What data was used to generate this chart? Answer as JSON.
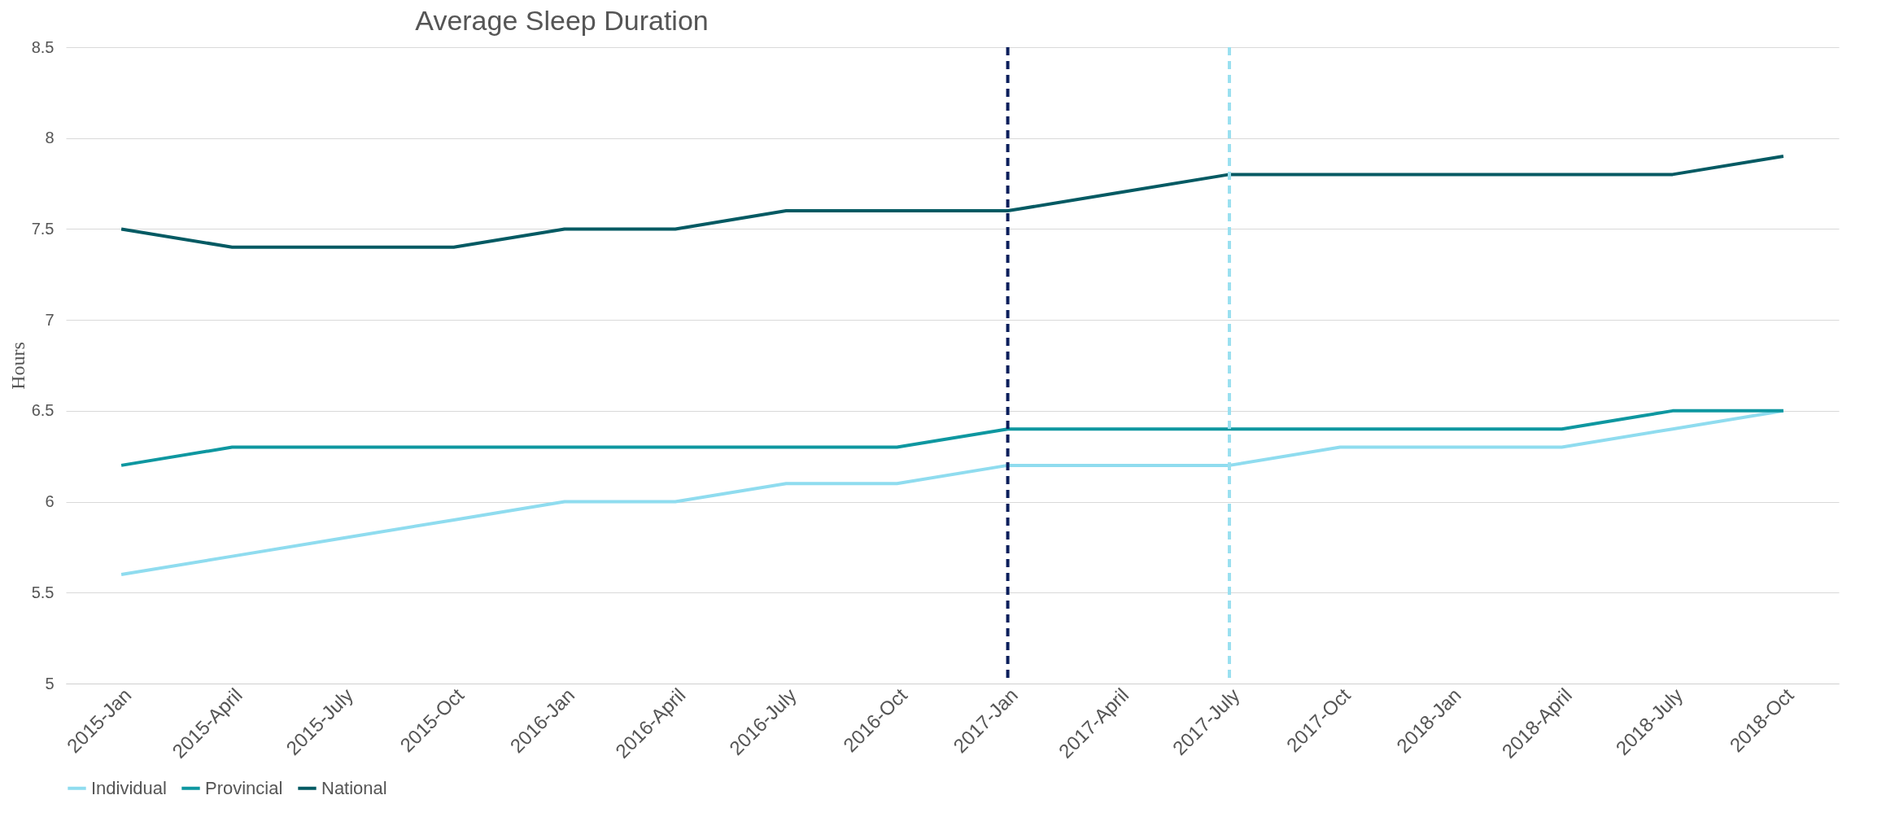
{
  "chart_data": {
    "type": "line",
    "title": "Average Sleep Duration",
    "ylabel": "Hours",
    "categories": [
      "2015-Jan",
      "2015-April",
      "2015-July",
      "2015-Oct",
      "2016-Jan",
      "2016-April",
      "2016-July",
      "2016-Oct",
      "2017-Jan",
      "2017-April",
      "2017-July",
      "2017-Oct",
      "2018-Jan",
      "2018-April",
      "2018-July",
      "2018-Oct"
    ],
    "series": [
      {
        "name": "Individual",
        "color": "#8fdcef",
        "values": [
          5.6,
          5.7,
          5.8,
          5.9,
          6.0,
          6.0,
          6.1,
          6.1,
          6.2,
          6.2,
          6.2,
          6.3,
          6.3,
          6.3,
          6.4,
          6.5
        ]
      },
      {
        "name": "Provincial",
        "color": "#0e97a0",
        "values": [
          6.2,
          6.3,
          6.3,
          6.3,
          6.3,
          6.3,
          6.3,
          6.3,
          6.4,
          6.4,
          6.4,
          6.4,
          6.4,
          6.4,
          6.5,
          6.5
        ]
      },
      {
        "name": "National",
        "color": "#045a63",
        "values": [
          7.5,
          7.4,
          7.4,
          7.4,
          7.5,
          7.5,
          7.6,
          7.6,
          7.6,
          7.7,
          7.8,
          7.8,
          7.8,
          7.8,
          7.8,
          7.9
        ]
      }
    ],
    "ylim": [
      5,
      8.5
    ],
    "yticks": [
      5,
      5.5,
      6,
      6.5,
      7,
      7.5,
      8,
      8.5
    ],
    "grid": "y",
    "legend": "bottom",
    "line_style": "solid",
    "marker": "none",
    "ref_lines": [
      {
        "axis": "x",
        "value": "2017-Jan",
        "color": "#0b1f5c",
        "line_style": "dashed"
      },
      {
        "axis": "x",
        "value": "2017-July",
        "color": "#9ae0f0",
        "line_style": "dashed"
      }
    ]
  }
}
